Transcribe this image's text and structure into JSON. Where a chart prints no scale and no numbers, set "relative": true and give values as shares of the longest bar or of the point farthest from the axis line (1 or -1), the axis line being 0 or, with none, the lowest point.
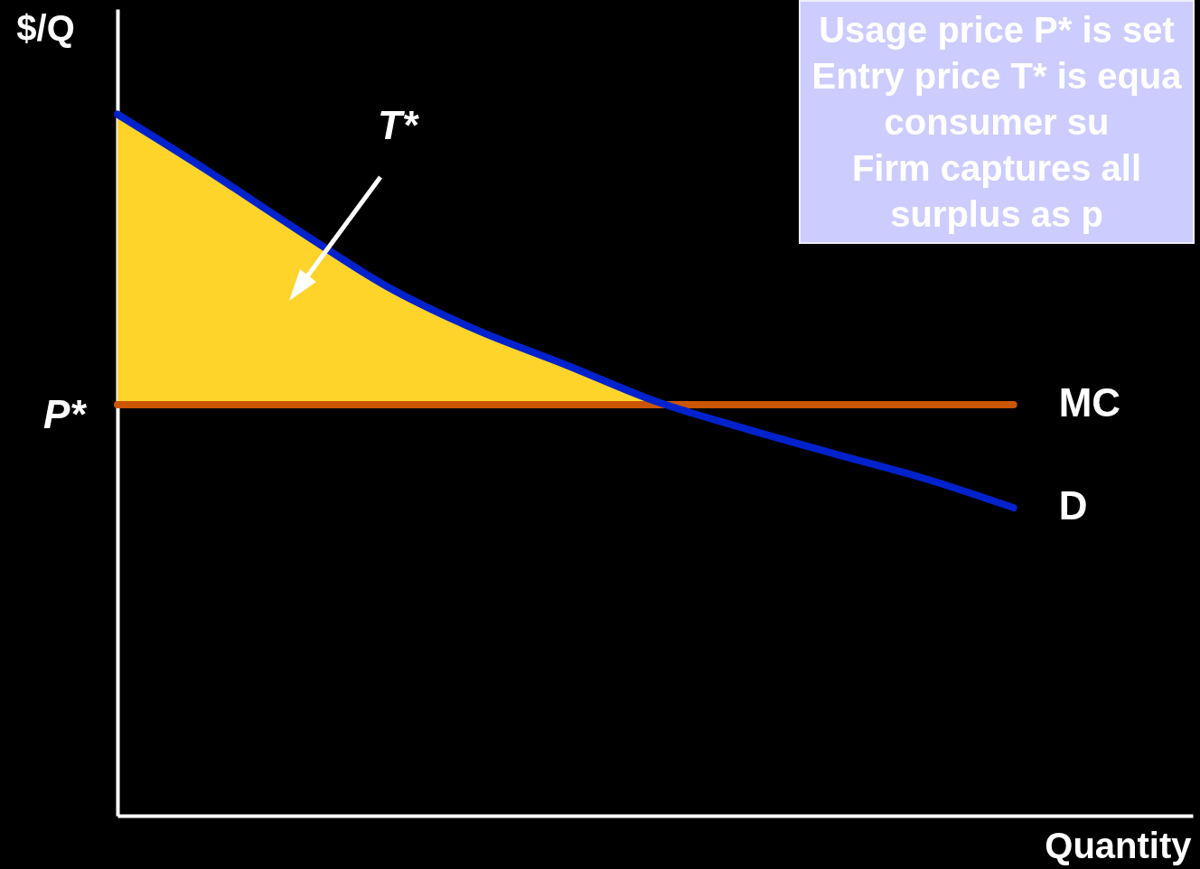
{
  "chart_data": {
    "type": "line",
    "relative": true,
    "xlabel": "Quantity",
    "ylabel": "$/Q",
    "categories": [
      null,
      null,
      null,
      null,
      null,
      null,
      null,
      null,
      null,
      null,
      null,
      null,
      null
    ],
    "series": [
      {
        "type": "area",
        "color": "#fed42a",
        "values": [
          1.0,
          0.92,
          0.836,
          0.755,
          0.693,
          0.643,
          0.591,
          null,
          null,
          null,
          null,
          null,
          null
        ]
      },
      {
        "name": "MC",
        "color": "#cc5500",
        "values": [
          0.586,
          0.586,
          0.586,
          0.586,
          0.586,
          0.586,
          0.586,
          0.586,
          0.586,
          0.586,
          0.586,
          null,
          null
        ]
      },
      {
        "name": "D",
        "color": "#0022cc",
        "values": [
          1.0,
          0.92,
          0.836,
          0.755,
          0.693,
          0.643,
          0.591,
          0.552,
          0.516,
          0.481,
          0.439,
          null,
          null
        ]
      }
    ],
    "annotations": [
      "P*",
      "T*",
      "Usage price P* is set",
      "Entry price T* is equa",
      "consumer su",
      "Firm captures all",
      "surplus as p"
    ]
  }
}
